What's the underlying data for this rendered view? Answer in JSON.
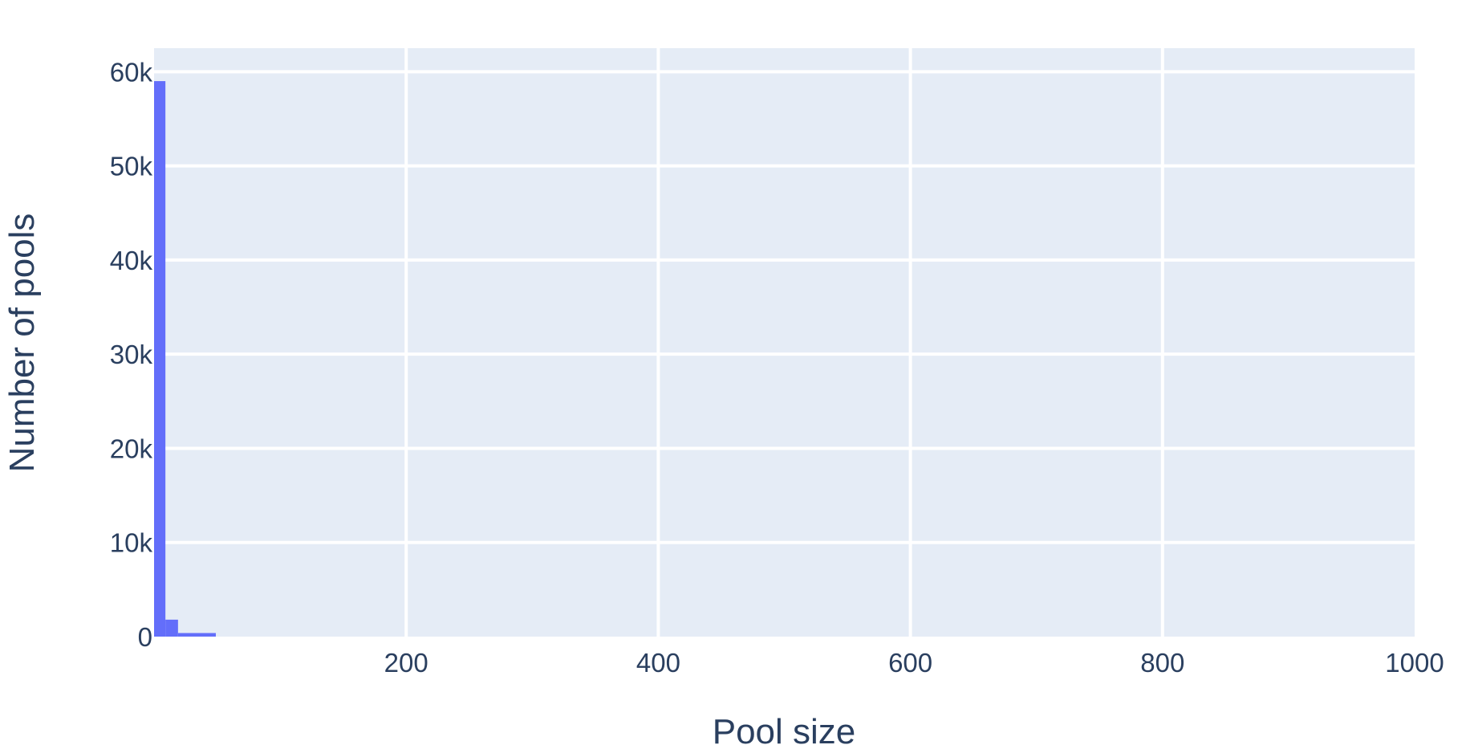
{
  "chart_data": {
    "type": "bar",
    "title": "",
    "xlabel": "Pool size",
    "ylabel": "Number of pools",
    "xlim": [
      0,
      1000
    ],
    "ylim": [
      0,
      62500
    ],
    "x_ticks": [
      200,
      400,
      600,
      800,
      1000
    ],
    "y_ticks": [
      0,
      10000,
      20000,
      30000,
      40000,
      50000,
      60000
    ],
    "y_tick_labels": [
      "0",
      "10k",
      "20k",
      "30k",
      "40k",
      "50k",
      "60k"
    ],
    "grid": true,
    "plot_background": "#E5ECF6",
    "bar_color": "#636EFA",
    "bins": [
      {
        "x0": 0,
        "x1": 9,
        "value": 59000
      },
      {
        "x0": 9,
        "x1": 19,
        "value": 1800
      },
      {
        "x0": 19,
        "x1": 49,
        "value": 380
      }
    ]
  }
}
